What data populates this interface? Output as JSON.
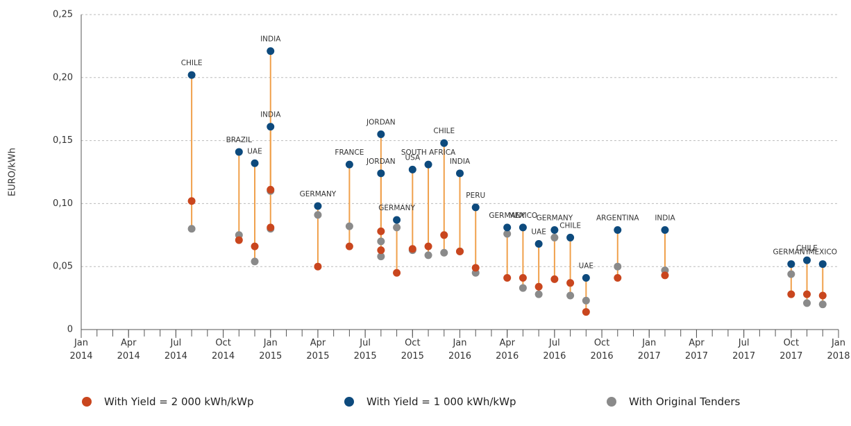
{
  "chart_data": {
    "type": "dumbbell",
    "y_label": "EURO/kWh",
    "labels": [
      "CHILE",
      "BRAZIL",
      "UAE",
      "INDIA",
      "INDIA",
      "GERMANY",
      "FRANCE",
      "JORDAN",
      "JORDAN",
      "GERMANY",
      "USA",
      "SOUTH AFRICA",
      "CHILE",
      "INDIA",
      "PERU",
      "GERMANY",
      "MEXICO",
      "UAE",
      "GERMANY",
      "CHILE",
      "UAE",
      "ARGENTINA",
      "INDIA",
      "GERMANY",
      "CHILE",
      "MEXICO"
    ],
    "x": [
      "2014-08",
      "2014-11",
      "2014-12",
      "2015-01",
      "2015-01",
      "2015-04",
      "2015-06",
      "2015-08",
      "2015-08",
      "2015-09",
      "2015-10",
      "2015-11",
      "2015-12",
      "2016-01",
      "2016-02",
      "2016-04",
      "2016-05",
      "2016-06",
      "2016-07",
      "2016-08",
      "2016-09",
      "2016-11",
      "2017-02",
      "2017-10",
      "2017-11",
      "2017-12"
    ],
    "series": [
      {
        "name": "With Yield = 2 000 kWh/kWp",
        "color": "#c9461e",
        "values": [
          0.102,
          0.071,
          0.066,
          0.111,
          0.081,
          0.05,
          0.066,
          0.078,
          0.063,
          0.045,
          0.064,
          0.066,
          0.075,
          0.062,
          0.049,
          0.041,
          0.041,
          0.034,
          0.04,
          0.037,
          0.014,
          0.041,
          0.043,
          0.028,
          0.028,
          0.027
        ]
      },
      {
        "name": "With Yield = 1 000 kWh/kWp",
        "color": "#0d4a7d",
        "values": [
          0.202,
          0.141,
          0.132,
          0.221,
          0.161,
          0.098,
          0.131,
          0.155,
          0.124,
          0.087,
          0.127,
          0.131,
          0.148,
          0.124,
          0.097,
          0.081,
          0.081,
          0.068,
          0.079,
          0.073,
          0.041,
          0.079,
          0.079,
          0.052,
          0.055,
          0.052
        ]
      },
      {
        "name": "With Original Tenders",
        "color": "#8a8a8a",
        "values": [
          0.08,
          0.075,
          0.054,
          0.11,
          0.08,
          0.091,
          0.082,
          0.07,
          0.058,
          0.081,
          0.063,
          0.059,
          0.061,
          0.062,
          0.045,
          0.076,
          0.033,
          0.028,
          0.073,
          0.027,
          0.023,
          0.05,
          0.047,
          0.044,
          0.021,
          0.02
        ]
      }
    ],
    "connector_color": "#f0a04b",
    "xlim": [
      "2014-01",
      "2018-01"
    ],
    "xticks": [
      {
        "value": "2014-01",
        "label": "Jan 2014"
      },
      {
        "value": "2014-04",
        "label": "Apr 2014"
      },
      {
        "value": "2014-07",
        "label": "Jul 2014"
      },
      {
        "value": "2014-10",
        "label": "Oct 2014"
      },
      {
        "value": "2015-01",
        "label": "Jan 2015"
      },
      {
        "value": "2015-04",
        "label": "Apr 2015"
      },
      {
        "value": "2015-07",
        "label": "Jul 2015"
      },
      {
        "value": "2015-10",
        "label": "Oct 2015"
      },
      {
        "value": "2016-01",
        "label": "Jan 2016"
      },
      {
        "value": "2016-04",
        "label": "Apr 2016"
      },
      {
        "value": "2016-07",
        "label": "Jul 2016"
      },
      {
        "value": "2016-10",
        "label": "Oct 2016"
      },
      {
        "value": "2017-01",
        "label": "Jan 2017"
      },
      {
        "value": "2017-04",
        "label": "Apr 2017"
      },
      {
        "value": "2017-07",
        "label": "Jul 2017"
      },
      {
        "value": "2017-10",
        "label": "Oct 2017"
      },
      {
        "value": "2018-01",
        "label": "Jan 2018"
      }
    ],
    "ylim": [
      0,
      0.25
    ],
    "yticks": [
      0,
      {
        "value": 0.05,
        "label": "0,05"
      },
      {
        "value": 0.1,
        "label": "0,10"
      },
      {
        "value": 0.15,
        "label": "0,15"
      },
      {
        "value": 0.2,
        "label": "0,20"
      },
      {
        "value": 0.25,
        "label": "0,25"
      }
    ],
    "grid": true
  }
}
